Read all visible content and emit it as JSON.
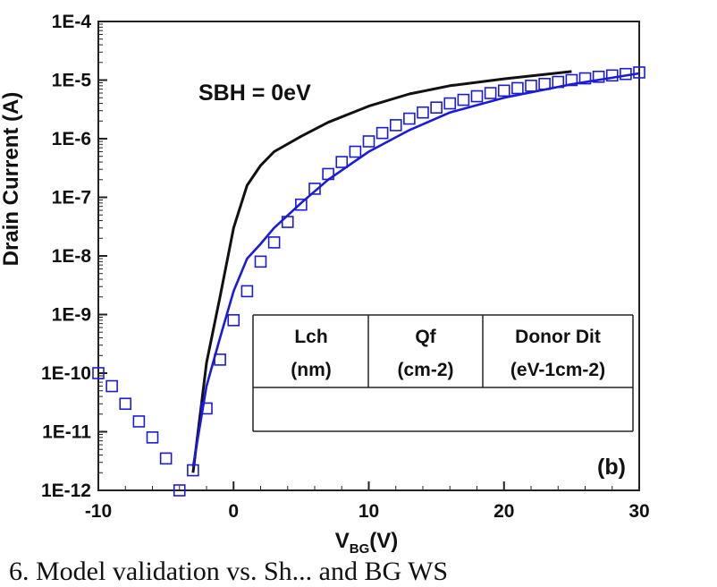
{
  "chart_data": {
    "type": "line",
    "ylabel_visible": "Drain Current (A)",
    "xlabel_main": "V",
    "xlabel_sub": "BG",
    "xlabel_unit": "(V)",
    "xlim": [
      -10,
      30
    ],
    "ylim": [
      1e-12,
      0.0001
    ],
    "yscale": "log",
    "x_ticks": [
      -10,
      0,
      10,
      20,
      30
    ],
    "x_tick_labels": [
      "-10",
      "0",
      "10",
      "20",
      "30"
    ],
    "y_ticks": [
      1e-12,
      1e-11,
      1e-10,
      1e-09,
      1e-08,
      1e-07,
      1e-06,
      1e-05,
      0.0001
    ],
    "y_tick_labels": [
      "1E-12",
      "1E-11",
      "1E-10",
      "1E-9",
      "1E-8",
      "1E-7",
      "1E-6",
      "1E-5",
      "1E-4"
    ],
    "annotation": "SBH = 0eV",
    "panel_label": "(b)",
    "series": [
      {
        "color": "#111111",
        "style": "line",
        "x": [
          -3,
          -2,
          -1,
          0,
          1,
          2,
          3,
          5,
          7,
          10,
          13,
          16,
          20,
          25
        ],
        "y": [
          2e-12,
          1.5e-10,
          2e-09,
          3e-08,
          1.6e-07,
          3.5e-07,
          6e-07,
          1.1e-06,
          1.9e-06,
          3.6e-06,
          5.8e-06,
          8e-06,
          1.05e-05,
          1.4e-05
        ]
      },
      {
        "color": "#1a1adb",
        "style": "line",
        "x": [
          -3,
          -2,
          -1,
          0,
          1,
          2,
          3,
          5,
          7,
          10,
          13,
          16,
          20,
          25,
          30
        ],
        "y": [
          2.5e-12,
          6e-11,
          4e-10,
          2.5e-09,
          9e-09,
          1.6e-08,
          3e-08,
          8e-08,
          2e-07,
          6e-07,
          1.4e-06,
          2.8e-06,
          5e-06,
          8.5e-06,
          1.3e-05
        ]
      },
      {
        "color": "#1a1adb",
        "style": "markers",
        "x": [
          -10,
          -9,
          -8,
          -7,
          -6,
          -5,
          -4,
          -3,
          -2,
          -1,
          0,
          1,
          2,
          3,
          4,
          5,
          6,
          7,
          8,
          9,
          10,
          11,
          12,
          13,
          14,
          15,
          16,
          17,
          18,
          19,
          20,
          21,
          22,
          23,
          24,
          25,
          26,
          27,
          28,
          29,
          30
        ],
        "y": [
          1e-10,
          6e-11,
          3e-11,
          1.5e-11,
          8e-12,
          3.5e-12,
          1e-12,
          2.2e-12,
          2.5e-11,
          1.7e-10,
          8e-10,
          2.5e-09,
          8e-09,
          1.7e-08,
          3.8e-08,
          7.5e-08,
          1.4e-07,
          2.5e-07,
          4e-07,
          6e-07,
          9e-07,
          1.25e-06,
          1.7e-06,
          2.2e-06,
          2.8e-06,
          3.4e-06,
          4e-06,
          4.6e-06,
          5.3e-06,
          6e-06,
          6.6e-06,
          7.3e-06,
          8e-06,
          8.6e-06,
          9.3e-06,
          1e-05,
          1.07e-05,
          1.14e-05,
          1.2e-05,
          1.27e-05,
          1.35e-05
        ]
      }
    ],
    "table": {
      "headers": [
        {
          "l1": "Lch",
          "l2": "(nm)"
        },
        {
          "l1": "Qf",
          "l2": "(cm-2)"
        },
        {
          "l1": "Donor Dit",
          "l2": "(eV-1cm-2)"
        }
      ]
    },
    "caption": "6. Model validation vs. Sh... and BG WS"
  }
}
